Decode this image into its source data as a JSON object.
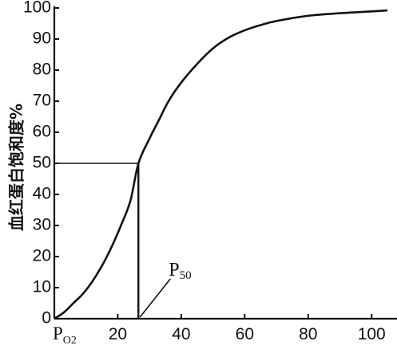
{
  "chart_data": {
    "type": "line",
    "ylabel": "血红蛋白饱和度%",
    "xlabel_main": "P",
    "xlabel_sub": "O2",
    "x_ticks": [
      20,
      40,
      60,
      80,
      100
    ],
    "y_ticks": [
      0,
      10,
      20,
      30,
      40,
      50,
      60,
      70,
      80,
      90,
      100
    ],
    "xlim": [
      0,
      108
    ],
    "ylim": [
      0,
      100
    ],
    "grid": false,
    "series": [
      {
        "x": [
          0,
          3,
          6,
          9,
          12,
          15,
          18,
          21,
          24,
          26.5,
          30,
          33,
          36,
          40,
          45,
          50,
          55,
          60,
          65,
          70,
          80,
          90,
          100,
          105
        ],
        "y": [
          0,
          2,
          5,
          8,
          12,
          17,
          23,
          30,
          38,
          50,
          58,
          64,
          70,
          76,
          82,
          87,
          90.5,
          92.8,
          94.5,
          95.8,
          97.5,
          98.3,
          98.9,
          99.2
        ]
      }
    ],
    "p50": {
      "x": 26.5,
      "y": 50,
      "label_main": "P",
      "label_sub": "50"
    }
  }
}
